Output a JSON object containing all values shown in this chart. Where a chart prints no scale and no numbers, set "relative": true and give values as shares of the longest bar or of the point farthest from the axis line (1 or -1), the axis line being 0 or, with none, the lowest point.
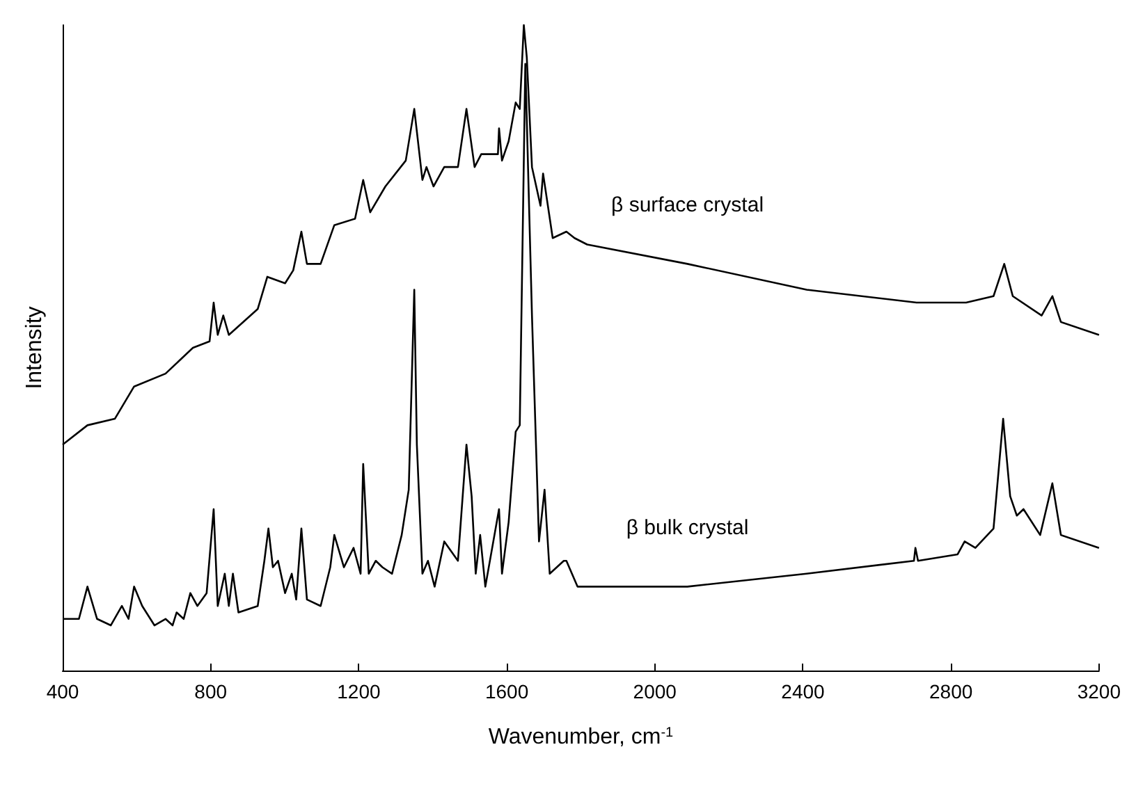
{
  "chart_data": {
    "type": "line",
    "relative": true,
    "xlabel": "Wavenumber, cm$^{-1}$",
    "ylabel": "Intensity",
    "xlim": [
      400,
      3200
    ],
    "xticks": [
      400,
      800,
      1200,
      1600,
      2000,
      2400,
      2800,
      3200
    ],
    "grid": false,
    "legend": false,
    "marker": "none",
    "line_style": "solid",
    "series": [
      {
        "name": "β surface crystal",
        "color": "#000000",
        "x": [
          400,
          467,
          541,
          593,
          678,
          752,
          797,
          808,
          819,
          834,
          849,
          927,
          953,
          1001,
          1023,
          1045,
          1060,
          1097,
          1134,
          1190,
          1212,
          1231,
          1272,
          1327,
          1350,
          1372,
          1383,
          1402,
          1431,
          1468,
          1491,
          1513,
          1531,
          1576,
          1579,
          1587,
          1605,
          1624,
          1635,
          1646,
          1654,
          1668,
          1691,
          1698,
          1724,
          1761,
          1783,
          1817,
          2088,
          2410,
          2707,
          2841,
          2915,
          2944,
          2967,
          3045,
          3074,
          3097,
          3200
        ],
        "values": [
          0.35,
          0.38,
          0.39,
          0.44,
          0.46,
          0.5,
          0.51,
          0.57,
          0.52,
          0.55,
          0.52,
          0.56,
          0.61,
          0.6,
          0.62,
          0.68,
          0.63,
          0.63,
          0.69,
          0.7,
          0.76,
          0.71,
          0.75,
          0.79,
          0.87,
          0.76,
          0.78,
          0.75,
          0.78,
          0.78,
          0.87,
          0.78,
          0.8,
          0.8,
          0.84,
          0.79,
          0.82,
          0.88,
          0.87,
          1,
          0.95,
          0.78,
          0.72,
          0.77,
          0.67,
          0.68,
          0.67,
          0.66,
          0.63,
          0.59,
          0.57,
          0.57,
          0.58,
          0.63,
          0.58,
          0.55,
          0.58,
          0.54,
          0.52
        ]
      },
      {
        "name": "β bulk crystal",
        "color": "#000000",
        "x": [
          400,
          444,
          467,
          493,
          530,
          560,
          578,
          593,
          615,
          648,
          678,
          697,
          708,
          727,
          745,
          764,
          789,
          808,
          819,
          838,
          849,
          860,
          875,
          927,
          945,
          956,
          968,
          982,
          1001,
          1019,
          1031,
          1045,
          1060,
          1097,
          1123,
          1134,
          1160,
          1186,
          1205,
          1212,
          1227,
          1246,
          1264,
          1290,
          1316,
          1335,
          1350,
          1357,
          1372,
          1387,
          1405,
          1431,
          1468,
          1491,
          1505,
          1516,
          1528,
          1542,
          1579,
          1587,
          1605,
          1624,
          1635,
          1650,
          1668,
          1687,
          1702,
          1716,
          1754,
          1761,
          1791,
          2088,
          2410,
          2700,
          2704,
          2711,
          2818,
          2837,
          2866,
          2915,
          2941,
          2960,
          2978,
          2996,
          3041,
          3074,
          3097,
          3200
        ],
        "values": [
          0.08,
          0.08,
          0.13,
          0.08,
          0.07,
          0.1,
          0.08,
          0.13,
          0.1,
          0.07,
          0.08,
          0.07,
          0.09,
          0.08,
          0.12,
          0.1,
          0.12,
          0.25,
          0.1,
          0.15,
          0.1,
          0.15,
          0.09,
          0.1,
          0.17,
          0.22,
          0.16,
          0.17,
          0.12,
          0.15,
          0.11,
          0.22,
          0.11,
          0.1,
          0.16,
          0.21,
          0.16,
          0.19,
          0.15,
          0.32,
          0.15,
          0.17,
          0.16,
          0.15,
          0.21,
          0.28,
          0.59,
          0.35,
          0.15,
          0.17,
          0.13,
          0.2,
          0.17,
          0.35,
          0.27,
          0.15,
          0.21,
          0.13,
          0.25,
          0.15,
          0.23,
          0.37,
          0.38,
          0.94,
          0.55,
          0.2,
          0.28,
          0.15,
          0.17,
          0.17,
          0.13,
          0.13,
          0.15,
          0.17,
          0.19,
          0.17,
          0.18,
          0.2,
          0.19,
          0.22,
          0.39,
          0.27,
          0.24,
          0.25,
          0.21,
          0.29,
          0.21,
          0.19
        ]
      }
    ]
  }
}
